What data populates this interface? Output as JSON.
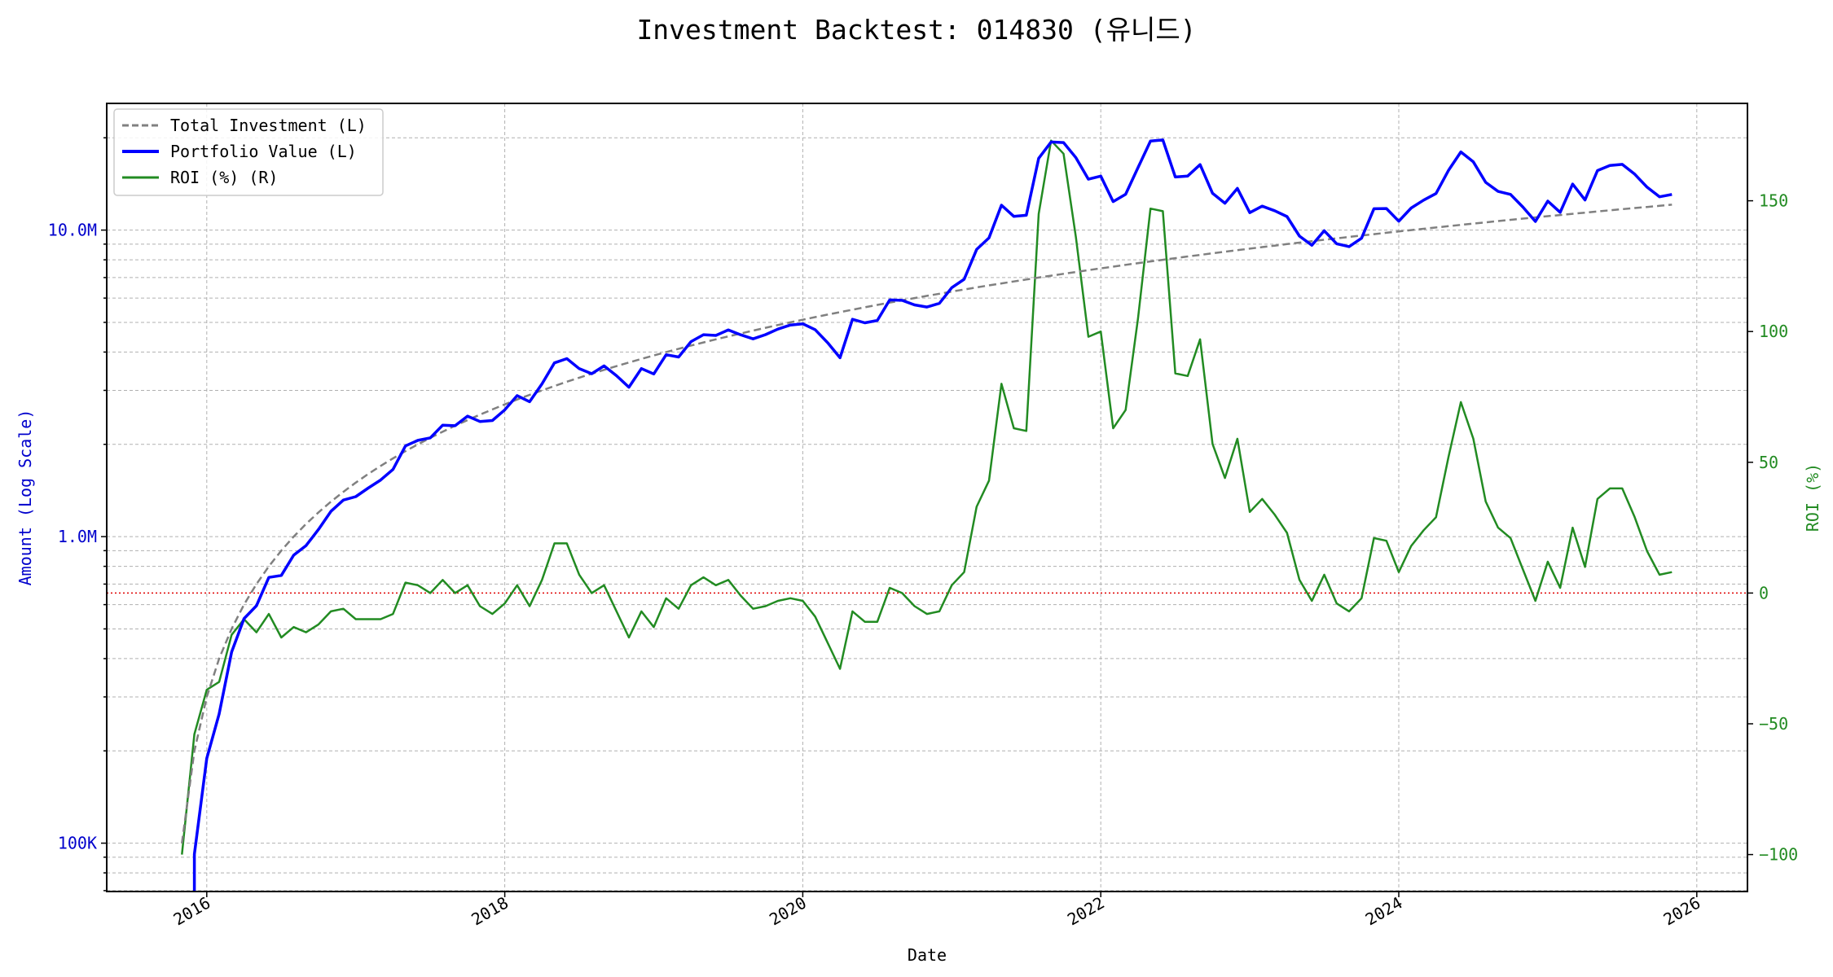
{
  "chart_data": {
    "type": "line",
    "title": "Investment Backtest: 014830 (유니드)",
    "xlabel": "Date",
    "ylabel_left": "Amount (Log Scale)",
    "ylabel_right": "ROI (%)",
    "x_ticks": [
      "2016",
      "2018",
      "2020",
      "2022",
      "2024",
      "2026"
    ],
    "y_left_ticks": [
      {
        "value": 100000,
        "label": "100K"
      },
      {
        "value": 1000000,
        "label": "1.0M"
      },
      {
        "value": 10000000,
        "label": "10.0M"
      }
    ],
    "y_right_ticks": [
      -100,
      -50,
      0,
      50,
      100,
      150
    ],
    "y_left_scale": "log",
    "y_left_lim": [
      70000,
      26000000
    ],
    "y_right_lim": [
      -113,
      187
    ],
    "x_lim": [
      "2015-05",
      "2026-04"
    ],
    "grid": true,
    "legend_position": "top-left",
    "reference_line": {
      "axis": "right",
      "value": 0,
      "color": "#e00000",
      "style": "dotted"
    },
    "colors": {
      "total_investment": "#808080",
      "portfolio_value": "#0000ff",
      "roi": "#228b22",
      "left_axis": "#0000cc",
      "right_axis": "#228b22"
    },
    "start_month": "2015-11",
    "end_month": "2025-11",
    "frequency": "monthly",
    "series": [
      {
        "name": "Total Investment (L)",
        "axis": "left",
        "style": "dashed",
        "unit": "M",
        "values": [
          0.1,
          0.2,
          0.3,
          0.4,
          0.5,
          0.6,
          0.7,
          0.8,
          0.9,
          1.0,
          1.1,
          1.2,
          1.3,
          1.4,
          1.5,
          1.6,
          1.7,
          1.8,
          1.9,
          2.0,
          2.1,
          2.2,
          2.3,
          2.4,
          2.5,
          2.6,
          2.7,
          2.8,
          2.9,
          3.0,
          3.1,
          3.2,
          3.3,
          3.4,
          3.5,
          3.6,
          3.7,
          3.8,
          3.9,
          4.0,
          4.1,
          4.2,
          4.3,
          4.4,
          4.5,
          4.6,
          4.7,
          4.8,
          4.9,
          5.0,
          5.1,
          5.2,
          5.3,
          5.4,
          5.5,
          5.6,
          5.7,
          5.8,
          5.9,
          6.0,
          6.1,
          6.2,
          6.3,
          6.4,
          6.5,
          6.6,
          6.7,
          6.8,
          6.9,
          7.0,
          7.1,
          7.2,
          7.3,
          7.4,
          7.5,
          7.6,
          7.7,
          7.8,
          7.9,
          8.0,
          8.1,
          8.2,
          8.3,
          8.4,
          8.5,
          8.6,
          8.7,
          8.8,
          8.9,
          9.0,
          9.1,
          9.2,
          9.3,
          9.4,
          9.5,
          9.6,
          9.7,
          9.8,
          9.9,
          10.0,
          10.1,
          10.2,
          10.3,
          10.4,
          10.5,
          10.6,
          10.7,
          10.8,
          10.9,
          11.0,
          11.1,
          11.2,
          11.3,
          11.4,
          11.5,
          11.6,
          11.7,
          11.8,
          11.9,
          12.0,
          12.1
        ]
      },
      {
        "name": "Portfolio Value (L)",
        "axis": "left",
        "style": "solid",
        "unit": "M",
        "values": [
          0,
          0.092,
          0.189,
          0.264,
          0.42,
          0.54,
          0.595,
          0.736,
          0.747,
          0.87,
          0.935,
          1.056,
          1.209,
          1.316,
          1.35,
          1.44,
          1.53,
          1.656,
          1.976,
          2.06,
          2.1,
          2.31,
          2.3,
          2.472,
          2.375,
          2.392,
          2.592,
          2.884,
          2.755,
          3.15,
          3.689,
          3.808,
          3.531,
          3.4,
          3.605,
          3.348,
          3.071,
          3.534,
          3.393,
          3.92,
          3.854,
          4.326,
          4.558,
          4.532,
          4.725,
          4.554,
          4.418,
          4.56,
          4.753,
          4.9,
          4.947,
          4.732,
          4.293,
          3.834,
          5.115,
          4.984,
          5.073,
          5.916,
          5.9,
          5.7,
          5.612,
          5.766,
          6.489,
          6.912,
          8.645,
          9.438,
          12.06,
          11.084,
          11.178,
          17.15,
          19.383,
          19.296,
          17.228,
          14.652,
          15.0,
          12.388,
          13.09,
          15.99,
          19.513,
          19.68,
          14.904,
          15.006,
          16.351,
          13.188,
          12.24,
          13.674,
          11.397,
          11.968,
          11.57,
          11.07,
          9.555,
          8.924,
          9.951,
          9.024,
          8.835,
          9.408,
          11.737,
          11.76,
          10.692,
          11.8,
          12.524,
          13.158,
          15.656,
          17.992,
          16.695,
          14.31,
          13.375,
          13.068,
          11.881,
          10.67,
          12.432,
          11.424,
          14.125,
          12.54,
          15.64,
          16.24,
          16.38,
          15.222,
          13.804,
          12.84,
          13.068
        ]
      },
      {
        "name": "ROI (%) (R)",
        "axis": "right",
        "style": "solid",
        "unit": "%",
        "values": [
          -100,
          -54,
          -37,
          -34,
          -16,
          -10,
          -15,
          -8,
          -17,
          -13,
          -15,
          -12,
          -7,
          -6,
          -10,
          -10,
          -10,
          -8,
          4,
          3,
          0,
          5,
          0,
          3,
          -5,
          -8,
          -4,
          3,
          -5,
          5,
          19,
          19,
          7,
          0,
          3,
          -7,
          -17,
          -7,
          -13,
          -2,
          -6,
          3,
          6,
          3,
          5,
          -1,
          -6,
          -5,
          -3,
          -2,
          -3,
          -9,
          -19,
          -29,
          -7,
          -11,
          -11,
          2,
          0,
          -5,
          -8,
          -7,
          3,
          8,
          33,
          43,
          80,
          63,
          62,
          145,
          173,
          168,
          136,
          98,
          100,
          63,
          70,
          105,
          147,
          146,
          84,
          83,
          97,
          57,
          44,
          59,
          31,
          36,
          30,
          23,
          5,
          -3,
          7,
          -4,
          -7,
          -2,
          21,
          20,
          8,
          18,
          24,
          29,
          52,
          73,
          59,
          35,
          25,
          21,
          9,
          -3,
          12,
          2,
          25,
          10,
          36,
          40,
          40,
          29,
          16,
          7,
          8
        ]
      }
    ]
  }
}
